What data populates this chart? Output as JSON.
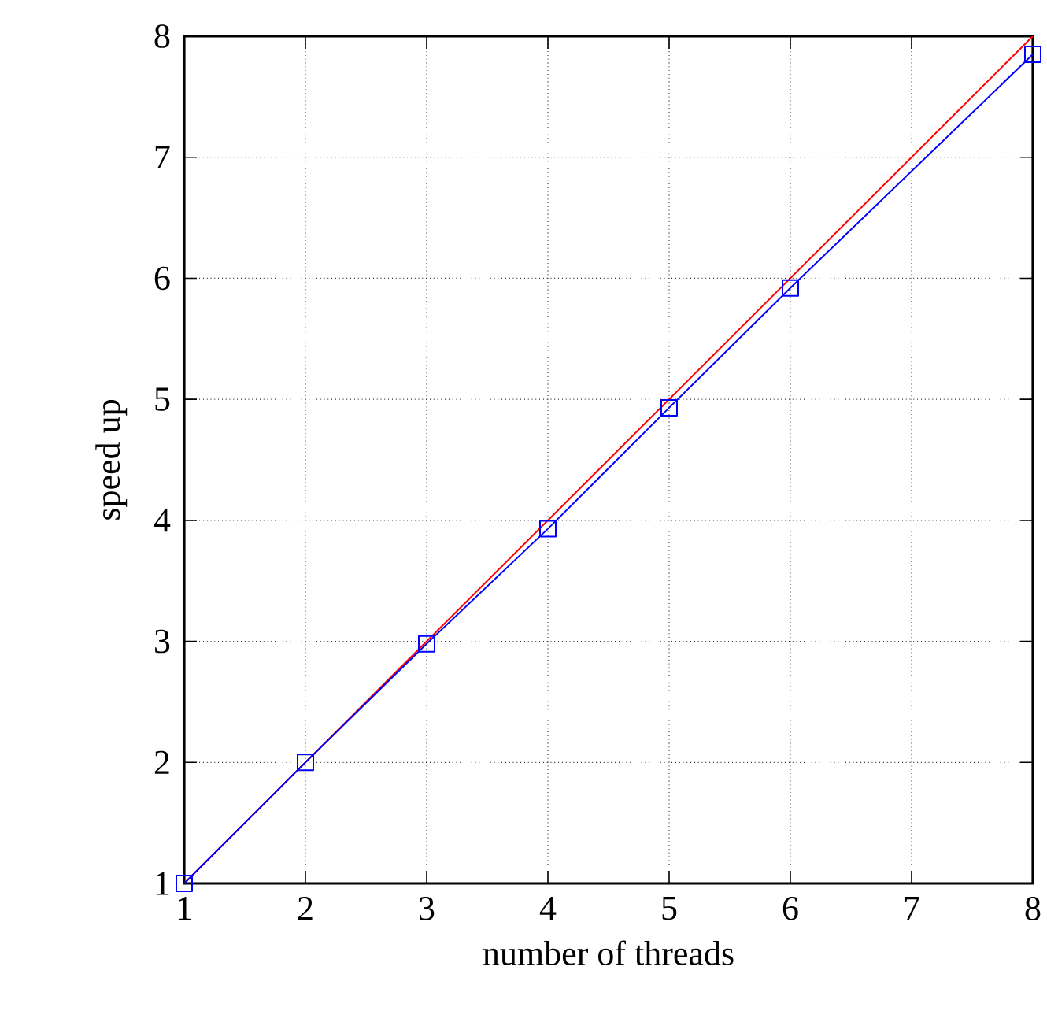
{
  "chart_data": {
    "type": "line",
    "xlabel": "number of threads",
    "ylabel": "speed up",
    "x": [
      1,
      2,
      3,
      4,
      5,
      6,
      8
    ],
    "series": [
      {
        "color": "#ff0000",
        "marker": "none",
        "line_style": "solid",
        "x": [
          1,
          8
        ],
        "values": [
          1,
          8
        ]
      },
      {
        "color": "#0000ff",
        "marker": "square",
        "line_style": "solid",
        "values": [
          1,
          2.0,
          2.98,
          3.93,
          4.93,
          5.92,
          7.85
        ]
      }
    ],
    "xlim": [
      1,
      8
    ],
    "ylim": [
      1,
      8
    ],
    "xticks": [
      1,
      2,
      3,
      4,
      5,
      6,
      7,
      8
    ],
    "yticks": [
      1,
      2,
      3,
      4,
      5,
      6,
      7,
      8
    ],
    "grid": true
  }
}
